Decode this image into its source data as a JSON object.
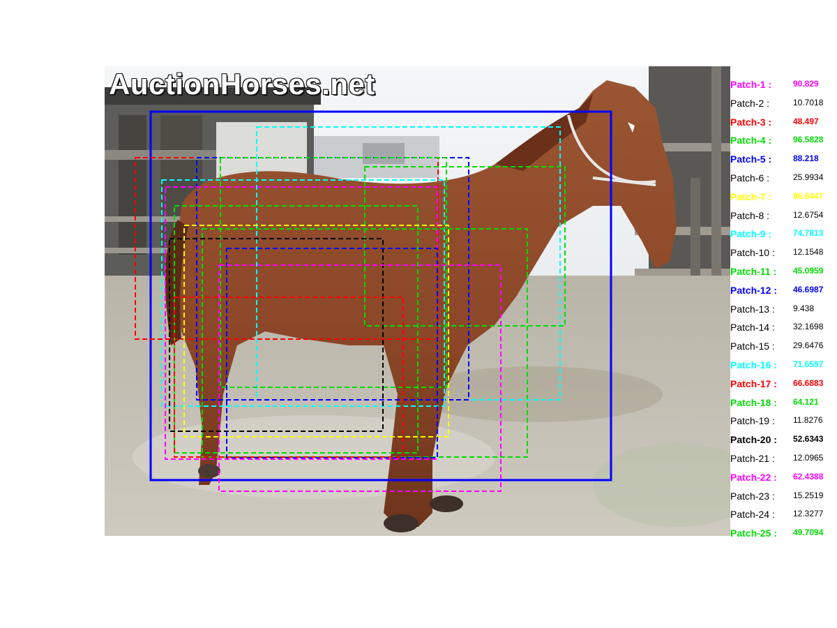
{
  "photo": {
    "watermark": "AuctionHorses.net",
    "subject": "horse-photo"
  },
  "patches": [
    {
      "label": "Patch-1 :",
      "value": "90.829",
      "color": "#ff00ff",
      "highlight": true
    },
    {
      "label": "Patch-2 :",
      "value": "10.7018",
      "color": "#000000",
      "highlight": false
    },
    {
      "label": "Patch-3 :",
      "value": "48.497",
      "color": "#ff0000",
      "highlight": true
    },
    {
      "label": "Patch-4 :",
      "value": "96.5828",
      "color": "#00dd00",
      "highlight": true
    },
    {
      "label": "Patch-5 :",
      "value": "88.218",
      "color": "#0000ff",
      "highlight": true
    },
    {
      "label": "Patch-6 :",
      "value": "25.9934",
      "color": "#000000",
      "highlight": false
    },
    {
      "label": "Patch-7 :",
      "value": "86.6447",
      "color": "#ffff00",
      "highlight": true
    },
    {
      "label": "Patch-8 :",
      "value": "12.6754",
      "color": "#000000",
      "highlight": false
    },
    {
      "label": "Patch-9 :",
      "value": "74.7813",
      "color": "#00ffff",
      "highlight": true
    },
    {
      "label": "Patch-10 :",
      "value": "12.1548",
      "color": "#000000",
      "highlight": false
    },
    {
      "label": "Patch-11 :",
      "value": "45.0959",
      "color": "#00dd00",
      "highlight": true
    },
    {
      "label": "Patch-12 :",
      "value": "46.6987",
      "color": "#0000ff",
      "highlight": true
    },
    {
      "label": "Patch-13 :",
      "value": "9.438",
      "color": "#000000",
      "highlight": false
    },
    {
      "label": "Patch-14 :",
      "value": "32.1698",
      "color": "#000000",
      "highlight": false
    },
    {
      "label": "Patch-15 :",
      "value": "29.6476",
      "color": "#000000",
      "highlight": false
    },
    {
      "label": "Patch-16 :",
      "value": "71.6597",
      "color": "#00ffff",
      "highlight": true
    },
    {
      "label": "Patch-17 :",
      "value": "66.6883",
      "color": "#ff0000",
      "highlight": true
    },
    {
      "label": "Patch-18 :",
      "value": "64.121",
      "color": "#00dd00",
      "highlight": true
    },
    {
      "label": "Patch-19 :",
      "value": "11.8276",
      "color": "#000000",
      "highlight": false
    },
    {
      "label": "Patch-20 :",
      "value": "52.6343",
      "color": "#000000",
      "highlight": true
    },
    {
      "label": "Patch-21 :",
      "value": "12.0965",
      "color": "#000000",
      "highlight": false
    },
    {
      "label": "Patch-22 :",
      "value": "62.4388",
      "color": "#ff00ff",
      "highlight": true
    },
    {
      "label": "Patch-23 :",
      "value": "15.2519",
      "color": "#000000",
      "highlight": false
    },
    {
      "label": "Patch-24 :",
      "value": "12.3277",
      "color": "#000000",
      "highlight": false
    },
    {
      "label": "Patch-25 :",
      "value": "49.7094",
      "color": "#00dd00",
      "highlight": true
    }
  ]
}
